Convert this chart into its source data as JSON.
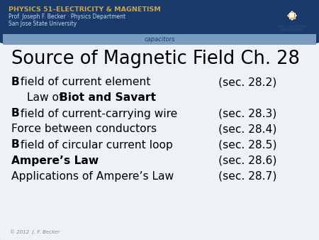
{
  "title": "Source of Magnetic Field Ch. 28",
  "header_text1": "PHYSICS 51–ELECTRICITY & MAGNETISM",
  "header_text2": "Prof. Joseph F. Becker · Physics Department",
  "header_text3": "San Jose State University",
  "banner_text": "capacitors",
  "copyright": "© 2012  J. F. Becker",
  "header_bg": "#1a3a6b",
  "header_accent": "#c8a84b",
  "banner_bg": "#7a9cc0",
  "slide_bg": "#eef2f7",
  "slide_bg2": "#ffffff",
  "rounded_border": "#c0c8d0",
  "lines": [
    {
      "bold_prefix": "B",
      "rest": " field of current element",
      "section": "(sec. 28.2)",
      "bold_rest": false,
      "indent": false
    },
    {
      "bold_prefix": "",
      "rest": "Law of ",
      "bold_part": "Biot and Savart",
      "section": "",
      "bold_rest": true,
      "indent": true
    },
    {
      "bold_prefix": "B",
      "rest": " field of current-carrying wire",
      "section": "(sec. 28.3)",
      "bold_rest": false,
      "indent": false
    },
    {
      "bold_prefix": "",
      "rest": "Force between conductors",
      "section": "(sec. 28.4)",
      "bold_rest": false,
      "indent": false
    },
    {
      "bold_prefix": "B",
      "rest": " field of circular current loop",
      "section": "(sec. 28.5)",
      "bold_rest": false,
      "indent": false
    },
    {
      "bold_prefix": "Ampere’s Law",
      "rest": "",
      "section": "(sec. 28.6)",
      "bold_rest": true,
      "indent": false
    },
    {
      "bold_prefix": "",
      "rest": "Applications of Ampere’s Law",
      "section": "(sec. 28.7)",
      "bold_rest": false,
      "indent": false
    }
  ],
  "logo_color1": "#f0a500",
  "logo_color2": "#e08000",
  "sjsu_color": "#2a4a7a"
}
